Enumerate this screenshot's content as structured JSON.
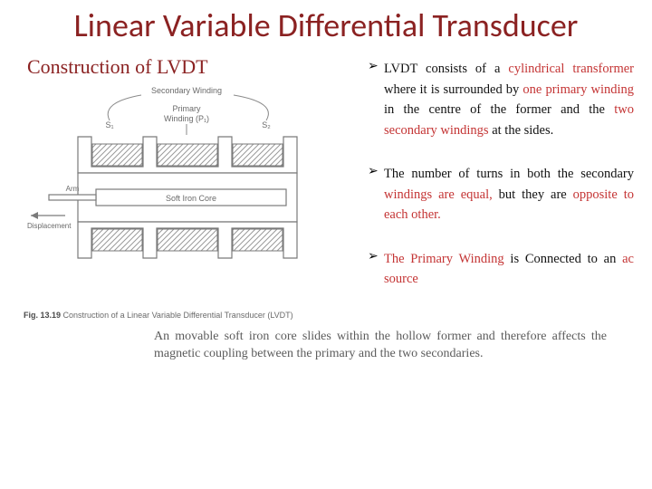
{
  "title": "Linear Variable Differential Transducer",
  "subhead": "Construction of LVDT",
  "caption_prefix": "Fig. 13.19",
  "caption_text": "Construction of a Linear Variable Differential Transducer (LVDT)",
  "diagram": {
    "secondary_label": "Secondary Winding",
    "primary_label_l1": "Primary",
    "primary_label_l2": "Winding (P₁)",
    "s1": "S₁",
    "s2": "S₂",
    "core_label": "Soft Iron Core",
    "arm_label": "Arm",
    "disp_label": "Displacement",
    "colors": {
      "stroke": "#7a7a7a",
      "fill": "#ffffff",
      "hatch": "#9a9a9a",
      "lead": "#8a8a8a"
    }
  },
  "bullets": [
    {
      "runs": [
        {
          "t": "LVDT consists of a ",
          "c": "black"
        },
        {
          "t": "cylindrical transformer",
          "c": "red"
        },
        {
          "t": " where it is surrounded by ",
          "c": "black"
        },
        {
          "t": "one primary winding",
          "c": "red"
        },
        {
          "t": " in the centre of the former and the ",
          "c": "black"
        },
        {
          "t": "two secondary windings",
          "c": "red"
        },
        {
          "t": " at the sides.",
          "c": "black"
        }
      ]
    },
    {
      "runs": [
        {
          "t": "The number of turns in both the secondary ",
          "c": "black"
        },
        {
          "t": "windings are equal,",
          "c": "red"
        },
        {
          "t": " but they are ",
          "c": "black"
        },
        {
          "t": "opposite to each other.",
          "c": "red"
        }
      ]
    },
    {
      "runs": [
        {
          "t": "The Primary Winding",
          "c": "red"
        },
        {
          "t": " is Connected to an ",
          "c": "black"
        },
        {
          "t": "ac source",
          "c": "red"
        }
      ]
    }
  ],
  "footnote": "An movable soft iron core slides within the hollow former and therefore affects the magnetic coupling between the primary and the two secondaries."
}
